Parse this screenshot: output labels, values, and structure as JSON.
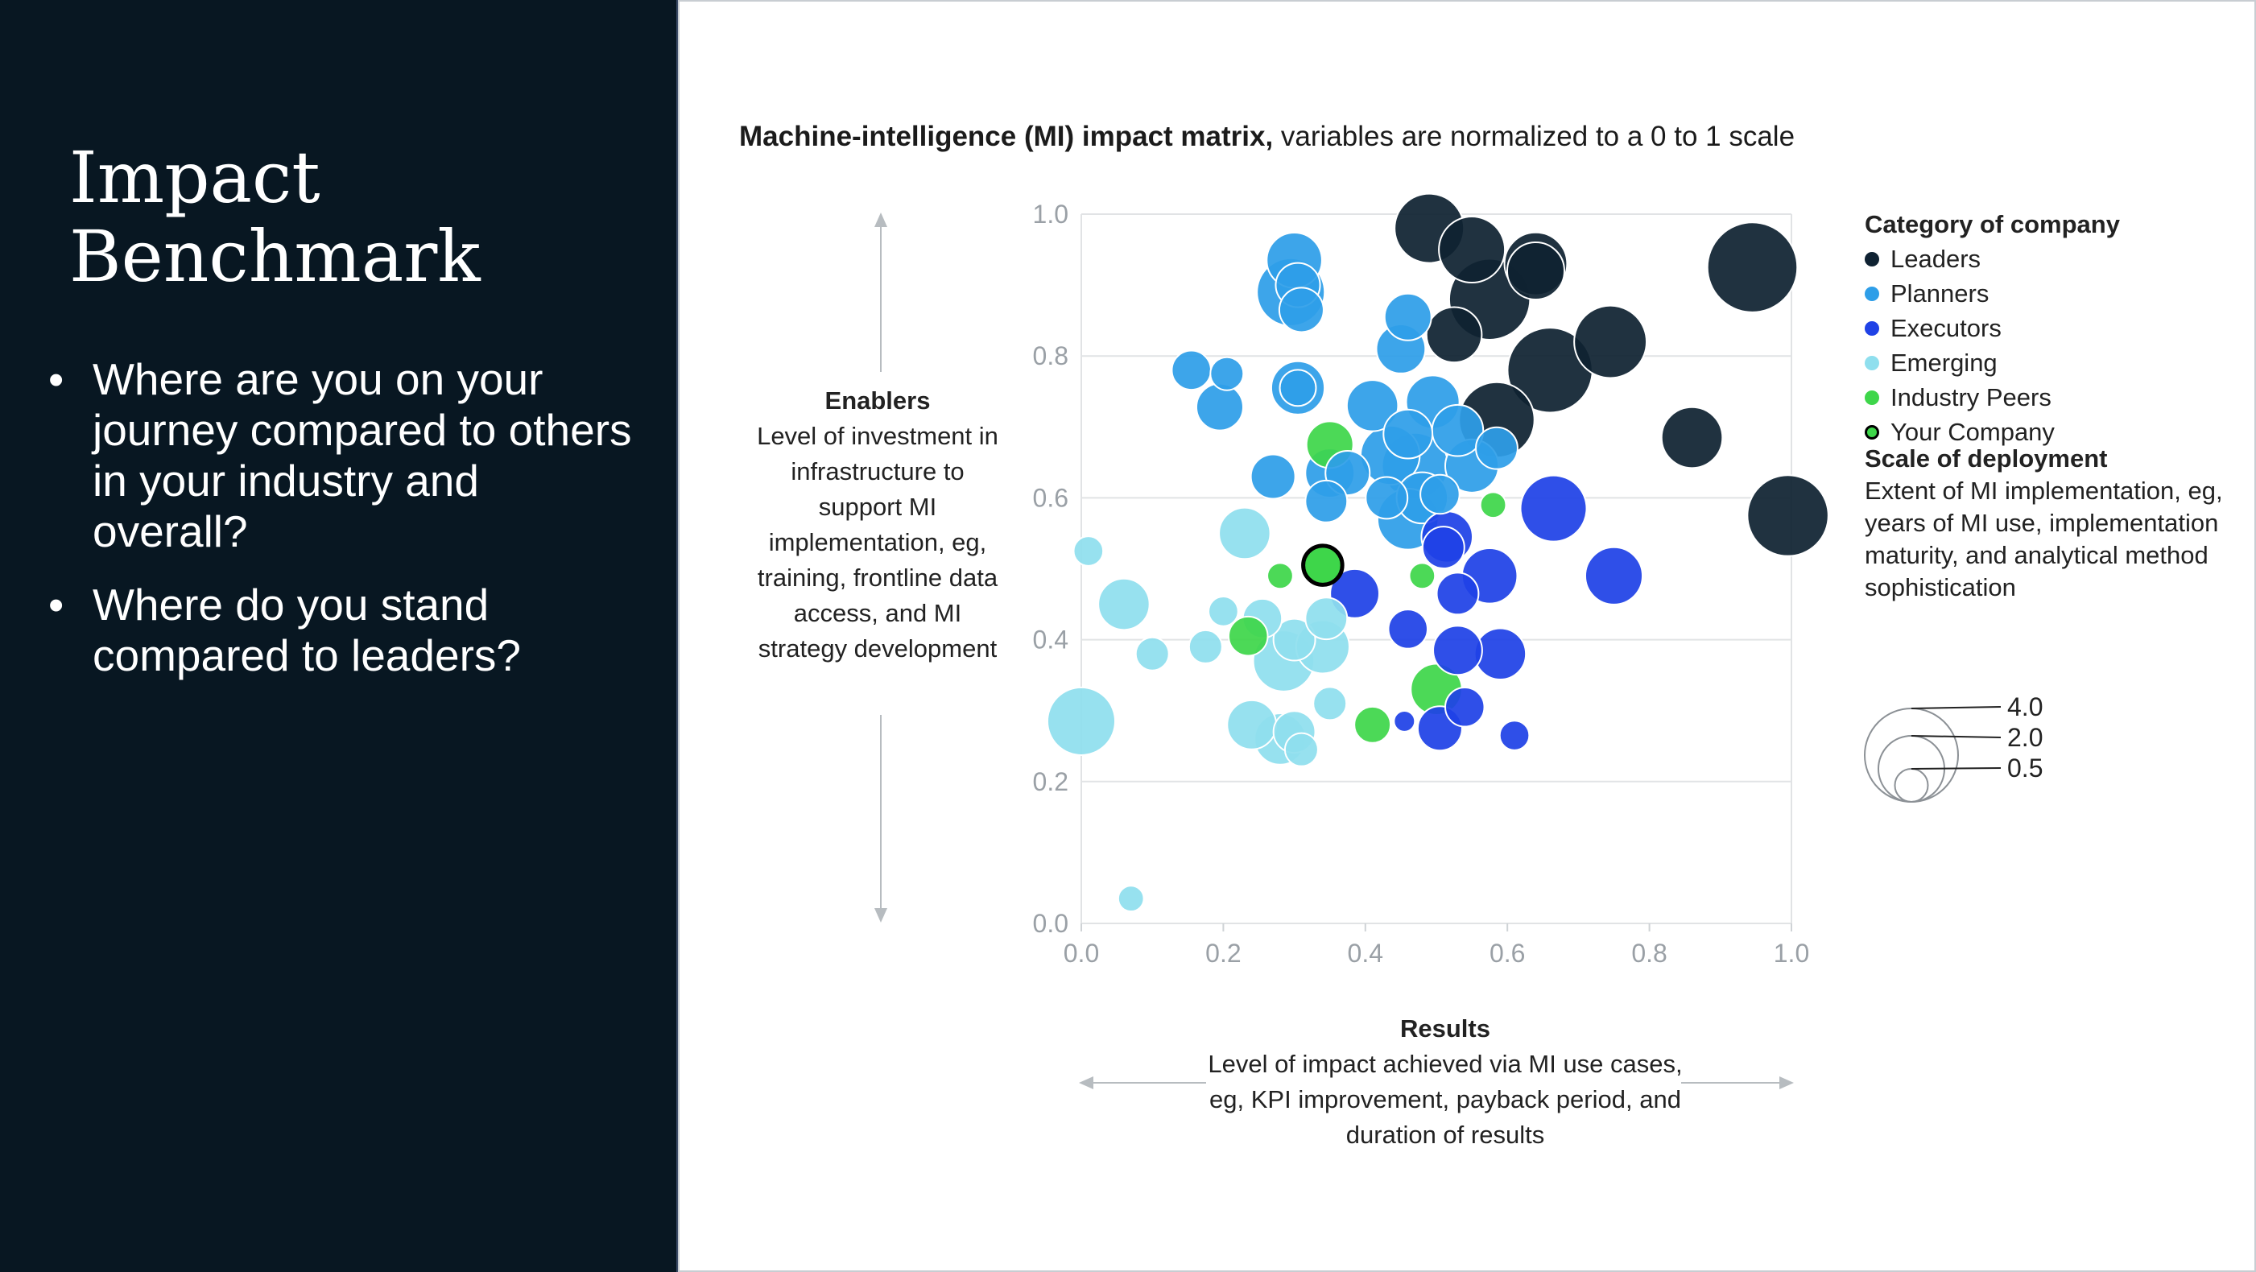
{
  "slide": {
    "title_line1": "Impact",
    "title_line2": "Benchmark",
    "bullets": [
      "Where are you on your journey compared to others in your industry and overall?",
      "Where do you stand compared to leaders?"
    ]
  },
  "colors": {
    "left_panel_bg": "#081722",
    "Leaders": "#0f2232",
    "Planners": "#2e9ee8",
    "Executors": "#1f42e6",
    "Emerging": "#8fdfee",
    "Industry Peers": "#3ed64a",
    "Your Company": "#3ed64a"
  },
  "chart_data": {
    "type": "scatter",
    "title": "Machine-intelligence (MI) impact matrix,",
    "subtitle": "variables are normalized to a 0 to 1 scale",
    "xlim": [
      0,
      1
    ],
    "ylim": [
      0,
      1
    ],
    "xticks": [
      "0.0",
      "0.2",
      "0.4",
      "0.6",
      "0.8",
      "1.0"
    ],
    "yticks": [
      "0.0",
      "0.2",
      "0.4",
      "0.6",
      "0.8",
      "1.0"
    ],
    "grid": "horizontal",
    "y_axis": {
      "heading": "Enablers",
      "description": "Level of investment in infrastructure to support MI implementation, eg, training, frontline data access, and MI strategy development"
    },
    "x_axis": {
      "heading": "Results",
      "description": "Level of impact achieved via MI use cases, eg, KPI improvement, payback period, and duration of results"
    },
    "legend": {
      "title": "Category of company",
      "position": "right",
      "entries": [
        "Leaders",
        "Planners",
        "Executors",
        "Emerging",
        "Industry Peers",
        "Your Company"
      ]
    },
    "size_legend": {
      "title": "Scale of deployment",
      "description": "Extent of MI implementation, eg, years of MI use, implementation maturity, and analytical method sophistication",
      "values": [
        "4.0",
        "2.0",
        "0.5"
      ]
    },
    "series": [
      {
        "name": "Leaders",
        "points": [
          {
            "x": 0.49,
            "y": 0.98,
            "s": 2.2
          },
          {
            "x": 0.55,
            "y": 0.95,
            "s": 2.0
          },
          {
            "x": 0.64,
            "y": 0.93,
            "s": 1.8
          },
          {
            "x": 0.64,
            "y": 0.92,
            "s": 1.5
          },
          {
            "x": 0.575,
            "y": 0.88,
            "s": 3.0
          },
          {
            "x": 0.525,
            "y": 0.83,
            "s": 1.4
          },
          {
            "x": 0.745,
            "y": 0.82,
            "s": 2.4
          },
          {
            "x": 0.66,
            "y": 0.78,
            "s": 3.3
          },
          {
            "x": 0.585,
            "y": 0.71,
            "s": 2.6
          },
          {
            "x": 0.86,
            "y": 0.685,
            "s": 1.7
          },
          {
            "x": 0.945,
            "y": 0.925,
            "s": 3.7
          },
          {
            "x": 0.995,
            "y": 0.575,
            "s": 3.0
          }
        ]
      },
      {
        "name": "Planners",
        "points": [
          {
            "x": 0.3,
            "y": 0.935,
            "s": 1.4
          },
          {
            "x": 0.295,
            "y": 0.89,
            "s": 2.1
          },
          {
            "x": 0.305,
            "y": 0.9,
            "s": 0.9
          },
          {
            "x": 0.31,
            "y": 0.865,
            "s": 0.9
          },
          {
            "x": 0.46,
            "y": 0.855,
            "s": 1.0
          },
          {
            "x": 0.45,
            "y": 0.81,
            "s": 1.1
          },
          {
            "x": 0.155,
            "y": 0.78,
            "s": 0.7
          },
          {
            "x": 0.205,
            "y": 0.775,
            "s": 0.5
          },
          {
            "x": 0.195,
            "y": 0.728,
            "s": 1.0
          },
          {
            "x": 0.305,
            "y": 0.755,
            "s": 1.3
          },
          {
            "x": 0.305,
            "y": 0.755,
            "s": 0.6
          },
          {
            "x": 0.41,
            "y": 0.73,
            "s": 1.2
          },
          {
            "x": 0.495,
            "y": 0.735,
            "s": 1.3
          },
          {
            "x": 0.46,
            "y": 0.69,
            "s": 1.1
          },
          {
            "x": 0.53,
            "y": 0.695,
            "s": 1.2
          },
          {
            "x": 0.435,
            "y": 0.66,
            "s": 1.6
          },
          {
            "x": 0.47,
            "y": 0.645,
            "s": 2.0
          },
          {
            "x": 0.55,
            "y": 0.645,
            "s": 1.3
          },
          {
            "x": 0.585,
            "y": 0.67,
            "s": 0.8
          },
          {
            "x": 0.27,
            "y": 0.63,
            "s": 0.9
          },
          {
            "x": 0.35,
            "y": 0.635,
            "s": 1.1
          },
          {
            "x": 0.375,
            "y": 0.635,
            "s": 0.9
          },
          {
            "x": 0.48,
            "y": 0.6,
            "s": 1.2
          },
          {
            "x": 0.46,
            "y": 0.57,
            "s": 1.7
          },
          {
            "x": 0.345,
            "y": 0.595,
            "s": 0.8
          },
          {
            "x": 0.43,
            "y": 0.6,
            "s": 0.8
          },
          {
            "x": 0.505,
            "y": 0.605,
            "s": 0.7
          }
        ]
      },
      {
        "name": "Executors",
        "points": [
          {
            "x": 0.515,
            "y": 0.545,
            "s": 1.2
          },
          {
            "x": 0.51,
            "y": 0.53,
            "s": 0.8
          },
          {
            "x": 0.665,
            "y": 0.585,
            "s": 2.0
          },
          {
            "x": 0.385,
            "y": 0.465,
            "s": 1.1
          },
          {
            "x": 0.575,
            "y": 0.49,
            "s": 1.4
          },
          {
            "x": 0.53,
            "y": 0.465,
            "s": 0.8
          },
          {
            "x": 0.75,
            "y": 0.49,
            "s": 1.5
          },
          {
            "x": 0.46,
            "y": 0.415,
            "s": 0.7
          },
          {
            "x": 0.53,
            "y": 0.385,
            "s": 1.1
          },
          {
            "x": 0.59,
            "y": 0.38,
            "s": 1.2
          },
          {
            "x": 0.54,
            "y": 0.305,
            "s": 0.7
          },
          {
            "x": 0.505,
            "y": 0.275,
            "s": 0.9
          },
          {
            "x": 0.455,
            "y": 0.285,
            "s": 0.2
          },
          {
            "x": 0.61,
            "y": 0.265,
            "s": 0.4
          }
        ]
      },
      {
        "name": "Emerging",
        "points": [
          {
            "x": 0.23,
            "y": 0.55,
            "s": 1.2
          },
          {
            "x": 0.01,
            "y": 0.525,
            "s": 0.4
          },
          {
            "x": 0.06,
            "y": 0.45,
            "s": 1.2
          },
          {
            "x": 0.2,
            "y": 0.44,
            "s": 0.4
          },
          {
            "x": 0.255,
            "y": 0.43,
            "s": 0.7
          },
          {
            "x": 0.3,
            "y": 0.4,
            "s": 0.8
          },
          {
            "x": 0.34,
            "y": 0.39,
            "s": 1.3
          },
          {
            "x": 0.345,
            "y": 0.43,
            "s": 0.8
          },
          {
            "x": 0.1,
            "y": 0.38,
            "s": 0.5
          },
          {
            "x": 0.175,
            "y": 0.39,
            "s": 0.5
          },
          {
            "x": 0.285,
            "y": 0.37,
            "s": 1.7
          },
          {
            "x": 0.35,
            "y": 0.31,
            "s": 0.5
          },
          {
            "x": 0.24,
            "y": 0.28,
            "s": 1.1
          },
          {
            "x": 0.28,
            "y": 0.26,
            "s": 1.2
          },
          {
            "x": 0.3,
            "y": 0.27,
            "s": 0.8
          },
          {
            "x": 0.31,
            "y": 0.245,
            "s": 0.5
          },
          {
            "x": 0.0,
            "y": 0.285,
            "s": 2.1
          },
          {
            "x": 0.07,
            "y": 0.035,
            "s": 0.3
          }
        ]
      },
      {
        "name": "Industry Peers",
        "points": [
          {
            "x": 0.35,
            "y": 0.675,
            "s": 1.0
          },
          {
            "x": 0.58,
            "y": 0.59,
            "s": 0.3
          },
          {
            "x": 0.28,
            "y": 0.49,
            "s": 0.3
          },
          {
            "x": 0.48,
            "y": 0.49,
            "s": 0.3
          },
          {
            "x": 0.235,
            "y": 0.405,
            "s": 0.7
          },
          {
            "x": 0.5,
            "y": 0.33,
            "s": 1.2
          },
          {
            "x": 0.41,
            "y": 0.28,
            "s": 0.6
          }
        ]
      },
      {
        "name": "Your Company",
        "points": [
          {
            "x": 0.34,
            "y": 0.505,
            "s": 0.7
          }
        ]
      }
    ]
  },
  "labels": {
    "chart_heading_bold": "Machine-intelligence (MI) impact matrix,",
    "chart_heading_rest": " variables are normalized to a 0 to 1 scale",
    "enablers_heading": "Enablers",
    "enablers_desc": "Level of investment in infrastructure to support MI implementation, eg, training, frontline data access, and MI strategy development",
    "results_heading": "Results",
    "results_desc": "Level of impact achieved via MI use cases, eg, KPI improvement, payback period, and duration of results"
  }
}
